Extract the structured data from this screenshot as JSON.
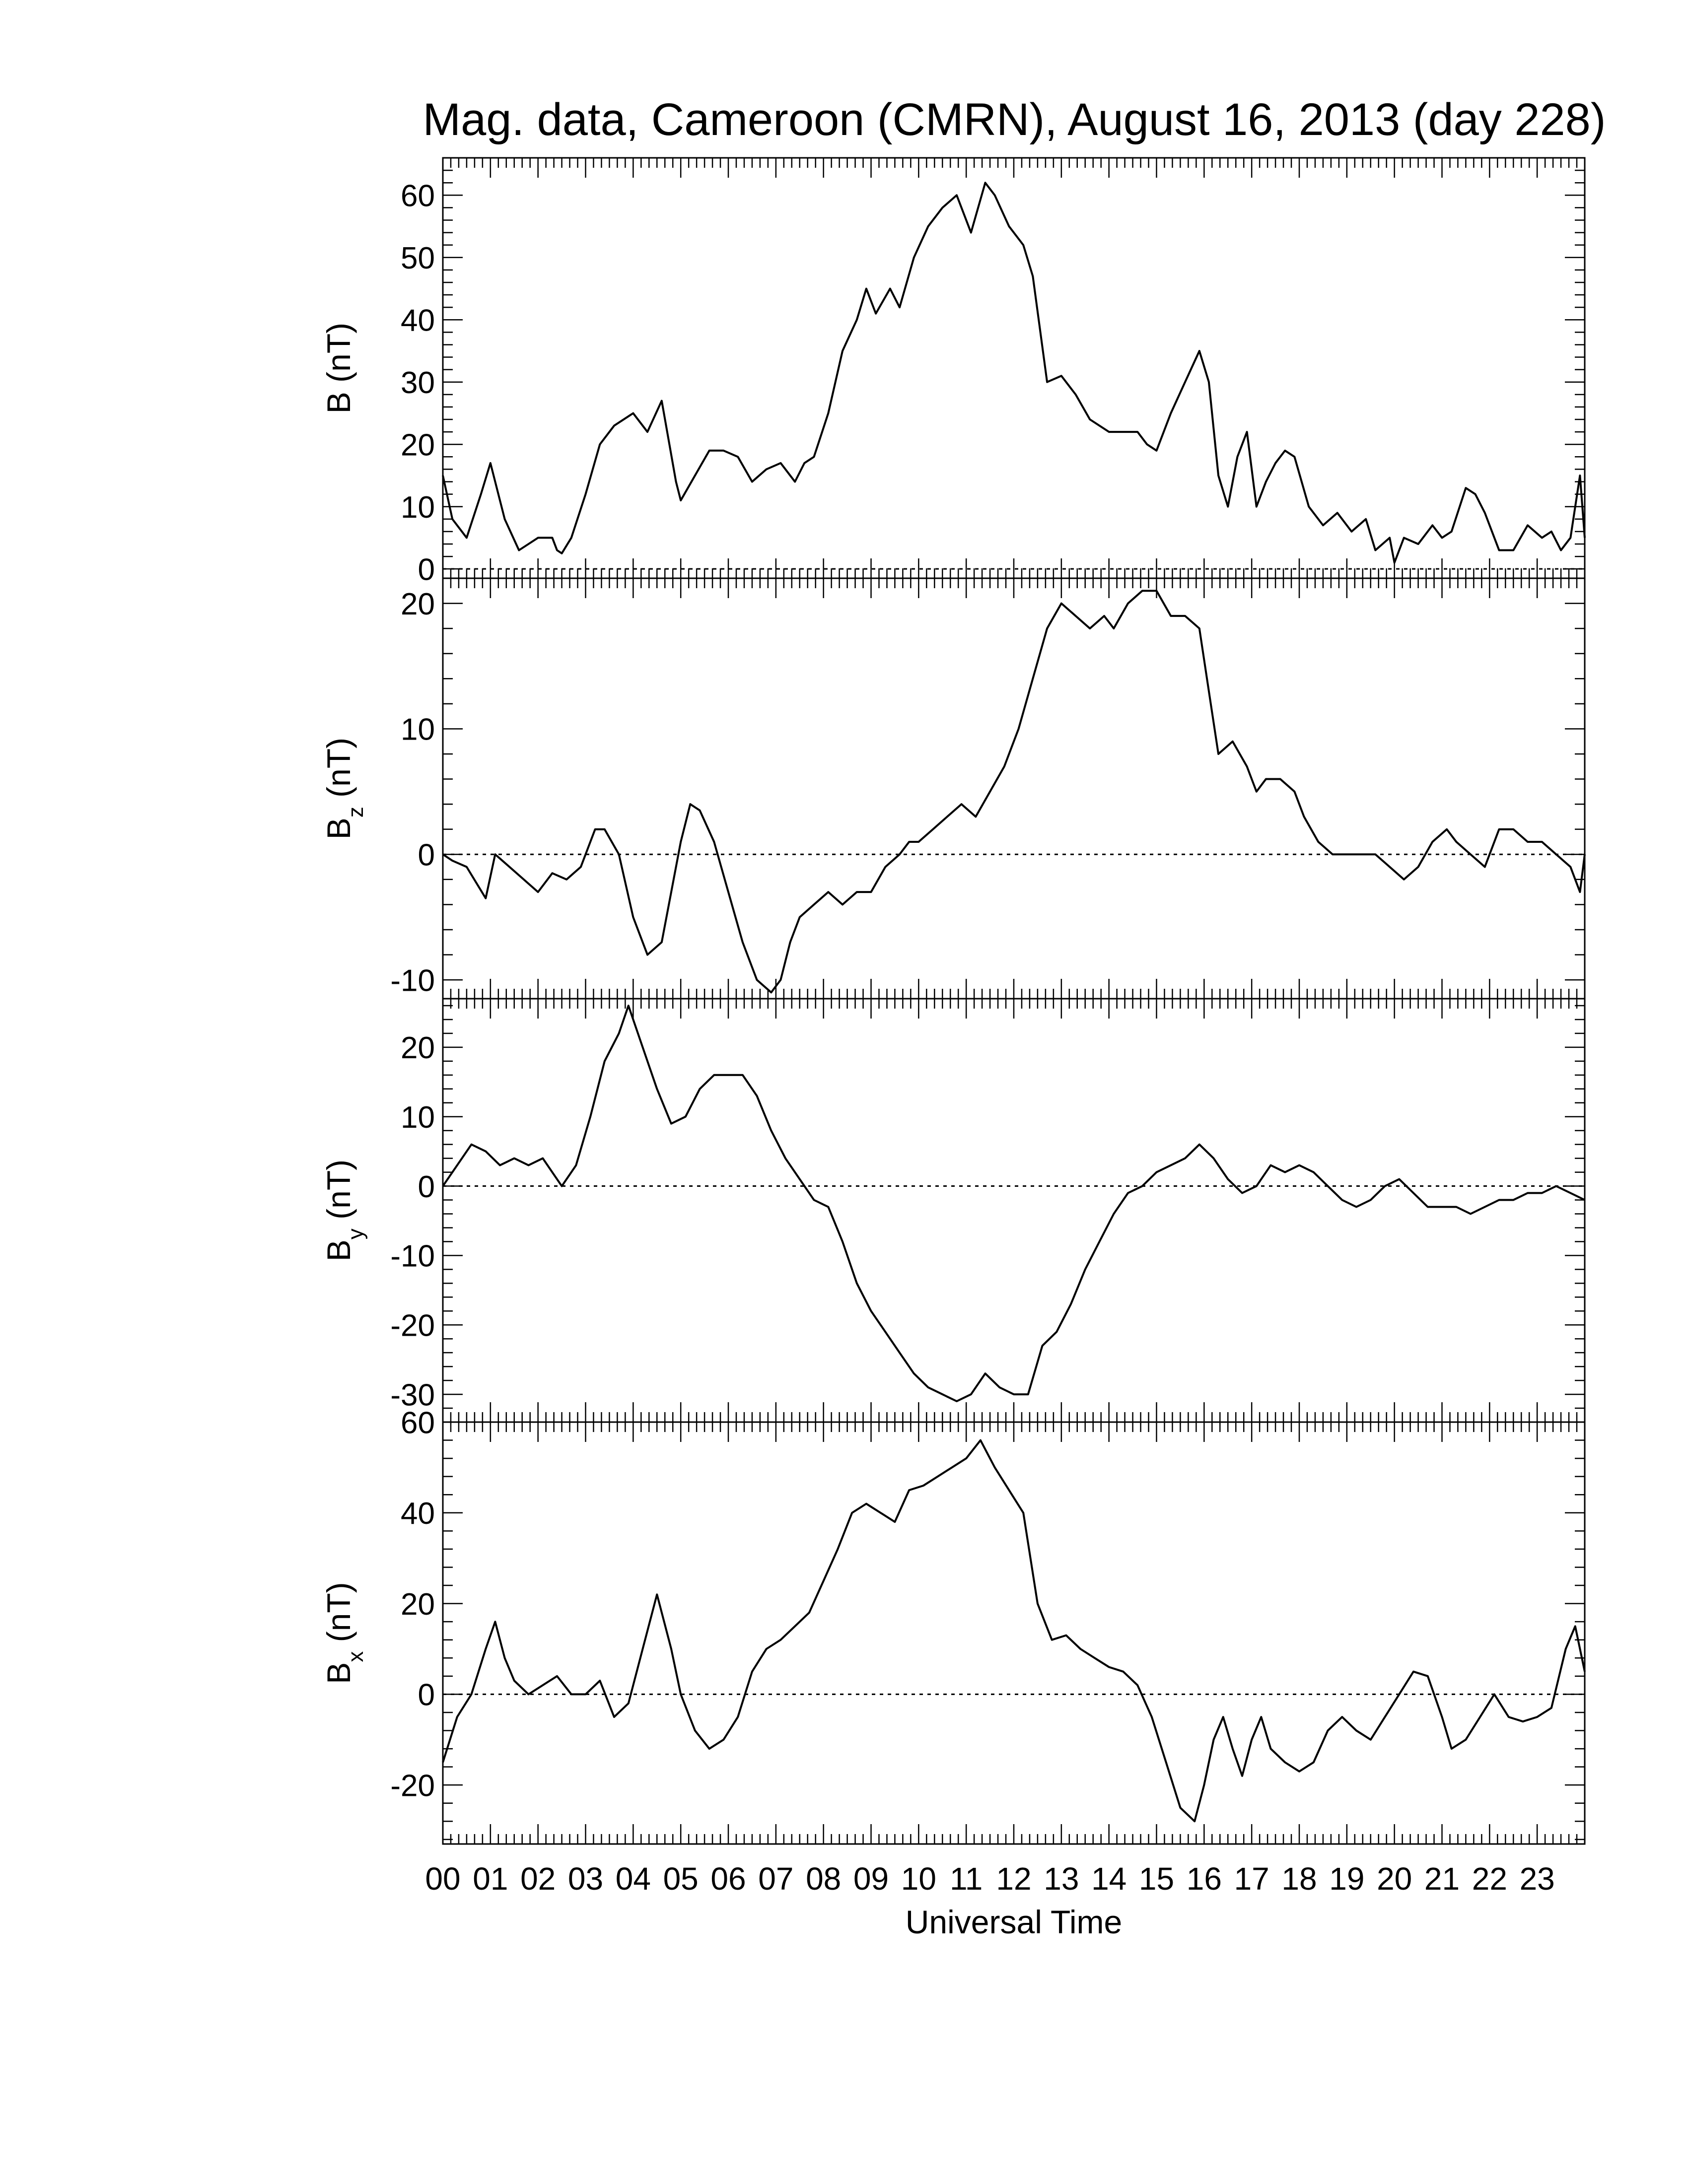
{
  "figure": {
    "title": "Mag. data, Cameroon (CMRN), August 16, 2013 (day 228)",
    "xlabel": "Universal Time",
    "x_tick_labels": [
      "00",
      "01",
      "02",
      "03",
      "04",
      "05",
      "06",
      "07",
      "08",
      "09",
      "10",
      "11",
      "12",
      "13",
      "14",
      "15",
      "16",
      "17",
      "18",
      "19",
      "20",
      "21",
      "22",
      "23"
    ]
  },
  "chart_data": [
    {
      "type": "line",
      "ylabel": "B (nT)",
      "ylabel_main": "B",
      "ylabel_sub": "",
      "ylabel_unit": " (nT)",
      "x_unit": "UT hours",
      "xlim": [
        0,
        24
      ],
      "ylim": [
        -1.5,
        66
      ],
      "yticks": [
        0,
        10,
        20,
        30,
        40,
        50,
        60
      ],
      "ytick_labels": [
        "0",
        "10",
        "20",
        "30",
        "40",
        "50",
        "60"
      ],
      "minor_y_step": 2,
      "zero_line": true,
      "series": [
        {
          "x": [
            0,
            0.2,
            0.5,
            0.8,
            1.0,
            1.3,
            1.6,
            1.8,
            2.0,
            2.3,
            2.4,
            2.5,
            2.7,
            3.0,
            3.3,
            3.6,
            4.0,
            4.3,
            4.6,
            4.9,
            5.0,
            5.3,
            5.6,
            5.9,
            6.2,
            6.5,
            6.8,
            7.1,
            7.4,
            7.6,
            7.8,
            8.1,
            8.4,
            8.7,
            8.9,
            9.1,
            9.4,
            9.6,
            9.9,
            10.2,
            10.5,
            10.8,
            11.1,
            11.4,
            11.6,
            11.9,
            12.2,
            12.4,
            12.7,
            13.0,
            13.3,
            13.6,
            14.0,
            14.3,
            14.6,
            14.8,
            15.0,
            15.3,
            15.6,
            15.9,
            16.1,
            16.3,
            16.5,
            16.7,
            16.9,
            17.1,
            17.3,
            17.5,
            17.7,
            17.9,
            18.2,
            18.5,
            18.8,
            19.1,
            19.4,
            19.6,
            19.9,
            20.0,
            20.2,
            20.5,
            20.8,
            21.0,
            21.2,
            21.5,
            21.7,
            21.9,
            22.2,
            22.5,
            22.8,
            23.1,
            23.3,
            23.5,
            23.7,
            23.9,
            24.0
          ],
          "y": [
            15,
            8,
            5,
            12,
            17,
            8,
            3,
            4,
            5,
            5,
            3,
            2.5,
            5,
            12,
            20,
            23,
            25,
            22,
            27,
            14,
            11,
            15,
            19,
            19,
            18,
            14,
            16,
            17,
            14,
            17,
            18,
            25,
            35,
            40,
            45,
            41,
            45,
            42,
            50,
            55,
            58,
            60,
            54,
            62,
            60,
            55,
            52,
            47,
            30,
            31,
            28,
            24,
            22,
            22,
            22,
            20,
            19,
            25,
            30,
            35,
            30,
            15,
            10,
            18,
            22,
            10,
            14,
            17,
            19,
            18,
            10,
            7,
            9,
            6,
            8,
            3,
            5,
            1,
            5,
            4,
            7,
            5,
            6,
            13,
            12,
            9,
            3,
            3,
            7,
            5,
            6,
            3,
            5,
            15,
            5
          ]
        }
      ]
    },
    {
      "type": "line",
      "ylabel": "Bz (nT)",
      "ylabel_main": "B",
      "ylabel_sub": "z",
      "ylabel_unit": " (nT)",
      "x_unit": "UT hours",
      "xlim": [
        0,
        24
      ],
      "ylim": [
        -11.5,
        22
      ],
      "yticks": [
        -10,
        0,
        10,
        20
      ],
      "ytick_labels": [
        "-10",
        "0",
        "10",
        "20"
      ],
      "minor_y_step": 2,
      "zero_line": true,
      "series": [
        {
          "x": [
            0,
            0.2,
            0.5,
            0.9,
            1.1,
            1.4,
            1.7,
            2.0,
            2.3,
            2.6,
            2.9,
            3.2,
            3.4,
            3.7,
            4.0,
            4.3,
            4.6,
            4.8,
            5.0,
            5.2,
            5.4,
            5.7,
            6.0,
            6.3,
            6.6,
            6.9,
            7.1,
            7.3,
            7.5,
            7.8,
            8.1,
            8.4,
            8.7,
            9.0,
            9.3,
            9.6,
            9.8,
            10.0,
            10.3,
            10.6,
            10.9,
            11.2,
            11.5,
            11.8,
            12.1,
            12.4,
            12.7,
            13.0,
            13.3,
            13.6,
            13.9,
            14.1,
            14.4,
            14.7,
            15.0,
            15.3,
            15.6,
            15.9,
            16.1,
            16.3,
            16.6,
            16.9,
            17.1,
            17.3,
            17.6,
            17.9,
            18.1,
            18.4,
            18.7,
            19.0,
            19.3,
            19.6,
            19.9,
            20.2,
            20.5,
            20.8,
            21.1,
            21.3,
            21.6,
            21.9,
            22.2,
            22.5,
            22.8,
            23.1,
            23.4,
            23.7,
            23.9,
            24.0
          ],
          "y": [
            0,
            -0.5,
            -1,
            -3.5,
            0,
            -1,
            -2,
            -3,
            -1.5,
            -2,
            -1,
            2,
            2,
            0,
            -5,
            -8,
            -7,
            -3,
            1,
            4,
            3.5,
            1,
            -3,
            -7,
            -10,
            -11,
            -10,
            -7,
            -5,
            -4,
            -3,
            -4,
            -3,
            -3,
            -1,
            0,
            1,
            1,
            2,
            3,
            4,
            3,
            5,
            7,
            10,
            14,
            18,
            20,
            19,
            18,
            19,
            18,
            20,
            21,
            21,
            19,
            19,
            18,
            13,
            8,
            9,
            7,
            5,
            6,
            6,
            5,
            3,
            1,
            0,
            0,
            0,
            0,
            -1,
            -2,
            -1,
            1,
            2,
            1,
            0,
            -1,
            2,
            2,
            1,
            1,
            0,
            -1,
            -3,
            0
          ]
        }
      ]
    },
    {
      "type": "line",
      "ylabel": "By (nT)",
      "ylabel_main": "B",
      "ylabel_sub": "y",
      "ylabel_unit": " (nT)",
      "x_unit": "UT hours",
      "xlim": [
        0,
        24
      ],
      "ylim": [
        -34,
        27
      ],
      "yticks": [
        -30,
        -20,
        -10,
        0,
        10,
        20
      ],
      "ytick_labels": [
        "-30",
        "-20",
        "-10",
        "0",
        "10",
        "20"
      ],
      "minor_y_step": 2,
      "zero_line": true,
      "series": [
        {
          "x": [
            0,
            0.3,
            0.6,
            0.9,
            1.2,
            1.5,
            1.8,
            2.1,
            2.3,
            2.5,
            2.8,
            3.1,
            3.4,
            3.7,
            3.9,
            4.2,
            4.5,
            4.8,
            5.1,
            5.4,
            5.7,
            6.0,
            6.3,
            6.6,
            6.9,
            7.2,
            7.5,
            7.8,
            8.1,
            8.4,
            8.7,
            9.0,
            9.3,
            9.6,
            9.9,
            10.2,
            10.5,
            10.8,
            11.1,
            11.4,
            11.7,
            12.0,
            12.3,
            12.6,
            12.9,
            13.2,
            13.5,
            13.8,
            14.1,
            14.4,
            14.7,
            15.0,
            15.3,
            15.6,
            15.9,
            16.2,
            16.5,
            16.8,
            17.1,
            17.4,
            17.7,
            18.0,
            18.3,
            18.6,
            18.9,
            19.2,
            19.5,
            19.8,
            20.1,
            20.4,
            20.7,
            21.0,
            21.3,
            21.6,
            21.9,
            22.2,
            22.5,
            22.8,
            23.1,
            23.4,
            23.7,
            24.0
          ],
          "y": [
            0,
            3,
            6,
            5,
            3,
            4,
            3,
            4,
            2,
            0,
            3,
            10,
            18,
            22,
            26,
            20,
            14,
            9,
            10,
            14,
            16,
            16,
            16,
            13,
            8,
            4,
            1,
            -2,
            -3,
            -8,
            -14,
            -18,
            -21,
            -24,
            -27,
            -29,
            -30,
            -31,
            -30,
            -27,
            -29,
            -30,
            -30,
            -23,
            -21,
            -17,
            -12,
            -8,
            -4,
            -1,
            0,
            2,
            3,
            4,
            6,
            4,
            1,
            -1,
            0,
            3,
            2,
            3,
            2,
            0,
            -2,
            -3,
            -2,
            0,
            1,
            -1,
            -3,
            -3,
            -3,
            -4,
            -3,
            -2,
            -2,
            -1,
            -1,
            0,
            -1,
            -2
          ]
        }
      ]
    },
    {
      "type": "line",
      "ylabel": "Bx (nT)",
      "ylabel_main": "B",
      "ylabel_sub": "x",
      "ylabel_unit": " (nT)",
      "x_unit": "UT hours",
      "xlim": [
        0,
        24
      ],
      "ylim": [
        -33,
        60
      ],
      "yticks": [
        -20,
        0,
        20,
        40,
        60
      ],
      "ytick_labels": [
        "-20",
        "0",
        "20",
        "40",
        "60"
      ],
      "minor_y_step": 4,
      "zero_line": true,
      "series": [
        {
          "x": [
            0,
            0.3,
            0.6,
            0.9,
            1.1,
            1.3,
            1.5,
            1.8,
            2.1,
            2.4,
            2.7,
            3.0,
            3.3,
            3.6,
            3.9,
            4.2,
            4.5,
            4.8,
            5.0,
            5.3,
            5.6,
            5.9,
            6.2,
            6.5,
            6.8,
            7.1,
            7.4,
            7.7,
            8.0,
            8.3,
            8.6,
            8.9,
            9.2,
            9.5,
            9.8,
            10.1,
            10.4,
            10.7,
            11.0,
            11.3,
            11.6,
            11.9,
            12.2,
            12.5,
            12.8,
            13.1,
            13.4,
            13.7,
            14.0,
            14.3,
            14.6,
            14.9,
            15.2,
            15.5,
            15.8,
            16.0,
            16.2,
            16.4,
            16.6,
            16.8,
            17.0,
            17.2,
            17.4,
            17.7,
            18.0,
            18.3,
            18.6,
            18.9,
            19.2,
            19.5,
            19.8,
            20.1,
            20.4,
            20.7,
            21.0,
            21.2,
            21.5,
            21.8,
            22.1,
            22.4,
            22.7,
            23.0,
            23.3,
            23.6,
            23.8,
            24.0
          ],
          "y": [
            -15,
            -5,
            0,
            10,
            16,
            8,
            3,
            0,
            2,
            4,
            0,
            0,
            3,
            -5,
            -2,
            10,
            22,
            10,
            0,
            -8,
            -12,
            -10,
            -5,
            5,
            10,
            12,
            15,
            18,
            25,
            32,
            40,
            42,
            40,
            38,
            45,
            46,
            48,
            50,
            52,
            56,
            50,
            45,
            40,
            20,
            12,
            13,
            10,
            8,
            6,
            5,
            2,
            -5,
            -15,
            -25,
            -28,
            -20,
            -10,
            -5,
            -12,
            -18,
            -10,
            -5,
            -12,
            -15,
            -17,
            -15,
            -8,
            -5,
            -8,
            -10,
            -5,
            0,
            5,
            4,
            -5,
            -12,
            -10,
            -5,
            0,
            -5,
            -6,
            -5,
            -3,
            10,
            15,
            5
          ]
        }
      ]
    }
  ]
}
